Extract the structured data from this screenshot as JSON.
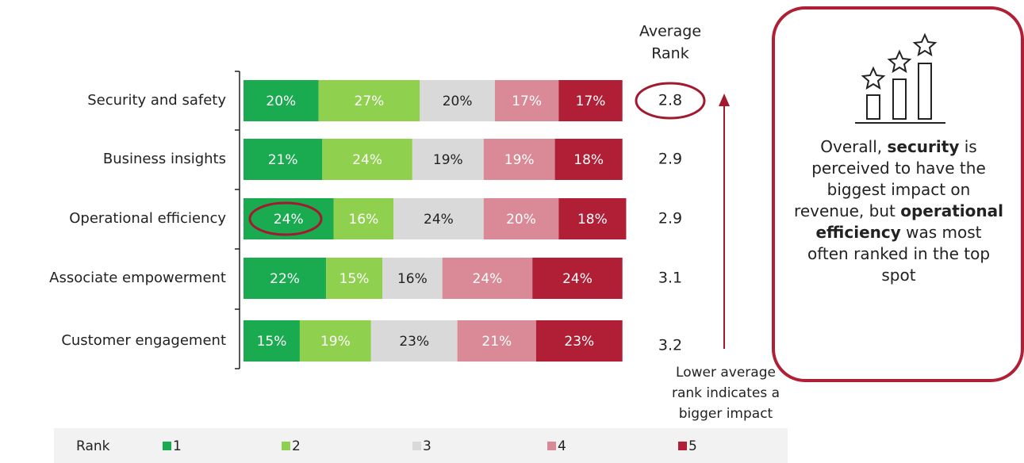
{
  "chart_data": {
    "type": "stacked_bar_horizontal",
    "categories": [
      "Security and safety",
      "Business insights",
      "Operational efficiency",
      "Associate empowerment",
      "Customer engagement"
    ],
    "series": [
      {
        "name": "1",
        "color": "#1aaa4f",
        "label_color": "#ffffff",
        "values": [
          20,
          21,
          24,
          22,
          15
        ],
        "value_labels": [
          "20%",
          "21%",
          "24%",
          "22%",
          "15%"
        ]
      },
      {
        "name": "2",
        "color": "#8fd14f",
        "label_color": "#ffffff",
        "values": [
          27,
          24,
          16,
          15,
          19
        ],
        "value_labels": [
          "27%",
          "24%",
          "16%",
          "15%",
          "19%"
        ]
      },
      {
        "name": "3",
        "color": "#d9d9d9",
        "label_color": "#222222",
        "values": [
          20,
          19,
          24,
          16,
          23
        ],
        "value_labels": [
          "20%",
          "19%",
          "24%",
          "16%",
          "23%"
        ]
      },
      {
        "name": "4",
        "color": "#d98a96",
        "label_color": "#ffffff",
        "values": [
          17,
          19,
          20,
          24,
          21
        ],
        "value_labels": [
          "17%",
          "19%",
          "20%",
          "24%",
          "21%"
        ]
      },
      {
        "name": "5",
        "color": "#b01f36",
        "label_color": "#ffffff",
        "values": [
          17,
          18,
          18,
          24,
          23
        ],
        "value_labels": [
          "17%",
          "18%",
          "18%",
          "24%",
          "23%"
        ]
      }
    ],
    "legend_title": "Rank",
    "average_rank_title": [
      "Average",
      "Rank"
    ],
    "average_rank": [
      2.8,
      2.9,
      2.9,
      3.1,
      3.2
    ],
    "arrow_note": [
      "Lower average",
      "rank indicates a",
      "bigger impact"
    ],
    "callout_text": [
      "Overall, ",
      "security",
      " is perceived to have the biggest impact on revenue, but ",
      "operational efficiency",
      " was most often ranked in the top spot"
    ],
    "callout_bold": [
      false,
      true,
      false,
      true,
      false
    ]
  }
}
